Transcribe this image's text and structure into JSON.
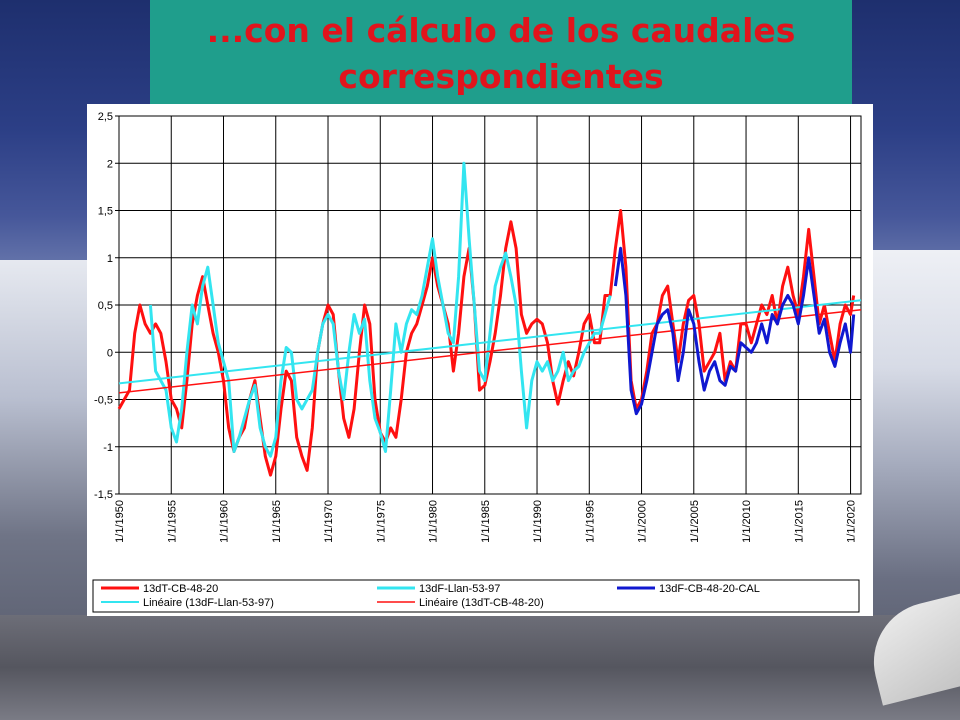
{
  "title": "...con el cálculo de los caudales correspondientes",
  "chart_data": {
    "type": "line",
    "xlim": [
      1950,
      2021
    ],
    "ylim": [
      -1.5,
      2.5
    ],
    "yticks": [
      "2,5",
      "2",
      "1,5",
      "1",
      "0,5",
      "0",
      "-0,5",
      "-1",
      "-1,5"
    ],
    "ytick_values": [
      2.5,
      2,
      1.5,
      1,
      0.5,
      0,
      -0.5,
      -1,
      -1.5
    ],
    "xticks": [
      "1/1/1950",
      "1/1/1955",
      "1/1/1960",
      "1/1/1965",
      "1/1/1970",
      "1/1/1975",
      "1/1/1980",
      "1/1/1985",
      "1/1/1990",
      "1/1/1995",
      "1/1/2000",
      "1/1/2005",
      "1/1/2010",
      "1/1/2015",
      "1/1/2020"
    ],
    "xtick_values": [
      1950,
      1955,
      1960,
      1965,
      1970,
      1975,
      1980,
      1985,
      1990,
      1995,
      2000,
      2005,
      2010,
      2015,
      2020
    ],
    "grid": true,
    "legend_position": "bottom",
    "series": [
      {
        "name": "13dT-CB-48-20",
        "color": "#ff1010",
        "width": 3,
        "points": [
          [
            1950,
            -0.6
          ],
          [
            1951,
            -0.4
          ],
          [
            1951.5,
            0.2
          ],
          [
            1952,
            0.5
          ],
          [
            1952.5,
            0.3
          ],
          [
            1953,
            0.2
          ],
          [
            1953.5,
            0.3
          ],
          [
            1954,
            0.2
          ],
          [
            1954.5,
            -0.1
          ],
          [
            1955,
            -0.5
          ],
          [
            1955.5,
            -0.6
          ],
          [
            1956,
            -0.8
          ],
          [
            1956.5,
            -0.3
          ],
          [
            1957,
            0.3
          ],
          [
            1957.5,
            0.6
          ],
          [
            1958,
            0.8
          ],
          [
            1958.5,
            0.5
          ],
          [
            1959,
            0.2
          ],
          [
            1959.5,
            0.0
          ],
          [
            1960,
            -0.3
          ],
          [
            1960.5,
            -0.8
          ],
          [
            1961,
            -1.05
          ],
          [
            1961.5,
            -0.9
          ],
          [
            1962,
            -0.8
          ],
          [
            1962.5,
            -0.5
          ],
          [
            1963,
            -0.3
          ],
          [
            1963.5,
            -0.7
          ],
          [
            1964,
            -1.1
          ],
          [
            1964.5,
            -1.3
          ],
          [
            1965,
            -1.1
          ],
          [
            1965.5,
            -0.6
          ],
          [
            1966,
            -0.2
          ],
          [
            1966.5,
            -0.3
          ],
          [
            1967,
            -0.9
          ],
          [
            1967.5,
            -1.1
          ],
          [
            1968,
            -1.25
          ],
          [
            1968.5,
            -0.8
          ],
          [
            1969,
            0.0
          ],
          [
            1969.5,
            0.3
          ],
          [
            1970,
            0.5
          ],
          [
            1970.5,
            0.4
          ],
          [
            1971,
            -0.2
          ],
          [
            1971.5,
            -0.7
          ],
          [
            1972,
            -0.9
          ],
          [
            1972.5,
            -0.6
          ],
          [
            1973,
            0.0
          ],
          [
            1973.5,
            0.5
          ],
          [
            1974,
            0.3
          ],
          [
            1974.5,
            -0.5
          ],
          [
            1975,
            -0.85
          ],
          [
            1975.5,
            -0.95
          ],
          [
            1976,
            -0.8
          ],
          [
            1976.5,
            -0.9
          ],
          [
            1977,
            -0.5
          ],
          [
            1977.5,
            0.0
          ],
          [
            1978,
            0.2
          ],
          [
            1978.5,
            0.3
          ],
          [
            1979,
            0.5
          ],
          [
            1979.5,
            0.7
          ],
          [
            1980,
            1.0
          ],
          [
            1980.5,
            0.7
          ],
          [
            1981,
            0.5
          ],
          [
            1981.5,
            0.3
          ],
          [
            1982,
            -0.2
          ],
          [
            1982.5,
            0.2
          ],
          [
            1983,
            0.8
          ],
          [
            1983.5,
            1.1
          ],
          [
            1984,
            0.5
          ],
          [
            1984.5,
            -0.4
          ],
          [
            1985,
            -0.35
          ],
          [
            1985.5,
            -0.1
          ],
          [
            1986,
            0.2
          ],
          [
            1986.5,
            0.6
          ],
          [
            1987,
            1.1
          ],
          [
            1987.5,
            1.38
          ],
          [
            1988,
            1.1
          ],
          [
            1988.5,
            0.4
          ],
          [
            1989,
            0.2
          ],
          [
            1989.5,
            0.3
          ],
          [
            1990,
            0.35
          ],
          [
            1990.5,
            0.3
          ],
          [
            1991,
            0.1
          ],
          [
            1991.5,
            -0.3
          ],
          [
            1992,
            -0.55
          ],
          [
            1992.5,
            -0.3
          ],
          [
            1993,
            -0.1
          ],
          [
            1993.5,
            -0.25
          ],
          [
            1994,
            0.0
          ],
          [
            1994.5,
            0.3
          ],
          [
            1995,
            0.4
          ],
          [
            1995.5,
            0.1
          ],
          [
            1996,
            0.1
          ],
          [
            1996.5,
            0.6
          ],
          [
            1997,
            0.6
          ],
          [
            1997.5,
            1.1
          ],
          [
            1998,
            1.5
          ],
          [
            1998.5,
            0.9
          ],
          [
            1999,
            -0.3
          ],
          [
            1999.5,
            -0.6
          ],
          [
            2000,
            -0.5
          ],
          [
            2000.5,
            -0.2
          ],
          [
            2001,
            0.2
          ],
          [
            2001.5,
            0.3
          ],
          [
            2002,
            0.6
          ],
          [
            2002.5,
            0.7
          ],
          [
            2003,
            0.3
          ],
          [
            2003.5,
            -0.1
          ],
          [
            2004,
            0.3
          ],
          [
            2004.5,
            0.55
          ],
          [
            2005,
            0.6
          ],
          [
            2005.5,
            0.3
          ],
          [
            2006,
            -0.2
          ],
          [
            2006.5,
            -0.1
          ],
          [
            2007,
            0.0
          ],
          [
            2007.5,
            0.2
          ],
          [
            2008,
            -0.3
          ],
          [
            2008.5,
            -0.1
          ],
          [
            2009,
            -0.2
          ],
          [
            2009.5,
            0.3
          ],
          [
            2010,
            0.3
          ],
          [
            2010.5,
            0.1
          ],
          [
            2011,
            0.3
          ],
          [
            2011.5,
            0.5
          ],
          [
            2012,
            0.4
          ],
          [
            2012.5,
            0.6
          ],
          [
            2013,
            0.3
          ],
          [
            2013.5,
            0.7
          ],
          [
            2014,
            0.9
          ],
          [
            2014.5,
            0.6
          ],
          [
            2015,
            0.4
          ],
          [
            2015.5,
            0.8
          ],
          [
            2016,
            1.3
          ],
          [
            2016.5,
            0.8
          ],
          [
            2017,
            0.3
          ],
          [
            2017.5,
            0.5
          ],
          [
            2018,
            0.2
          ],
          [
            2018.5,
            -0.1
          ],
          [
            2019,
            0.3
          ],
          [
            2019.5,
            0.5
          ],
          [
            2020,
            0.4
          ],
          [
            2020.3,
            0.6
          ]
        ]
      },
      {
        "name": "13dF-Llan-53-97",
        "color": "#33e5f0",
        "width": 3,
        "points": [
          [
            1953,
            0.5
          ],
          [
            1953.5,
            -0.2
          ],
          [
            1954,
            -0.3
          ],
          [
            1954.5,
            -0.4
          ],
          [
            1955,
            -0.8
          ],
          [
            1955.5,
            -0.95
          ],
          [
            1956,
            -0.6
          ],
          [
            1956.5,
            0.0
          ],
          [
            1957,
            0.5
          ],
          [
            1957.5,
            0.3
          ],
          [
            1958,
            0.7
          ],
          [
            1958.5,
            0.9
          ],
          [
            1959,
            0.5
          ],
          [
            1959.5,
            0.1
          ],
          [
            1960,
            -0.1
          ],
          [
            1960.5,
            -0.3
          ],
          [
            1961,
            -1.05
          ],
          [
            1961.5,
            -0.9
          ],
          [
            1962,
            -0.7
          ],
          [
            1962.5,
            -0.5
          ],
          [
            1963,
            -0.35
          ],
          [
            1963.5,
            -0.8
          ],
          [
            1964,
            -1.0
          ],
          [
            1964.5,
            -1.1
          ],
          [
            1965,
            -0.9
          ],
          [
            1965.5,
            -0.3
          ],
          [
            1966,
            0.05
          ],
          [
            1966.5,
            0.0
          ],
          [
            1967,
            -0.5
          ],
          [
            1967.5,
            -0.6
          ],
          [
            1968,
            -0.5
          ],
          [
            1968.5,
            -0.4
          ],
          [
            1969,
            0.0
          ],
          [
            1969.5,
            0.3
          ],
          [
            1970,
            0.4
          ],
          [
            1970.5,
            0.3
          ],
          [
            1971,
            -0.2
          ],
          [
            1971.5,
            -0.5
          ],
          [
            1972,
            0.0
          ],
          [
            1972.5,
            0.4
          ],
          [
            1973,
            0.2
          ],
          [
            1973.5,
            0.35
          ],
          [
            1974,
            -0.3
          ],
          [
            1974.5,
            -0.7
          ],
          [
            1975,
            -0.85
          ],
          [
            1975.5,
            -1.05
          ],
          [
            1976,
            -0.4
          ],
          [
            1976.5,
            0.3
          ],
          [
            1977,
            0.0
          ],
          [
            1977.5,
            0.3
          ],
          [
            1978,
            0.45
          ],
          [
            1978.5,
            0.4
          ],
          [
            1979,
            0.6
          ],
          [
            1979.5,
            0.9
          ],
          [
            1980,
            1.2
          ],
          [
            1980.5,
            0.8
          ],
          [
            1981,
            0.5
          ],
          [
            1981.5,
            0.2
          ],
          [
            1982,
            0.1
          ],
          [
            1982.5,
            0.8
          ],
          [
            1983,
            2.0
          ],
          [
            1983.5,
            1.2
          ],
          [
            1984,
            0.5
          ],
          [
            1984.5,
            -0.2
          ],
          [
            1985,
            -0.3
          ],
          [
            1985.5,
            0.2
          ],
          [
            1986,
            0.7
          ],
          [
            1986.5,
            0.9
          ],
          [
            1987,
            1.05
          ],
          [
            1987.5,
            0.8
          ],
          [
            1988,
            0.5
          ],
          [
            1988.5,
            -0.2
          ],
          [
            1989,
            -0.8
          ],
          [
            1989.5,
            -0.3
          ],
          [
            1990,
            -0.1
          ],
          [
            1990.5,
            -0.2
          ],
          [
            1991,
            -0.1
          ],
          [
            1991.5,
            -0.3
          ],
          [
            1992,
            -0.2
          ],
          [
            1992.5,
            0.0
          ],
          [
            1993,
            -0.3
          ],
          [
            1993.5,
            -0.2
          ],
          [
            1994,
            -0.15
          ],
          [
            1994.5,
            0.0
          ],
          [
            1995,
            0.1
          ],
          [
            1995.5,
            0.2
          ],
          [
            1996,
            0.2
          ],
          [
            1996.5,
            0.4
          ],
          [
            1997,
            0.6
          ]
        ]
      },
      {
        "name": "13dF-CB-48-20-CAL",
        "color": "#1018d0",
        "width": 3,
        "points": [
          [
            1997.5,
            0.7
          ],
          [
            1998,
            1.1
          ],
          [
            1998.5,
            0.6
          ],
          [
            1999,
            -0.4
          ],
          [
            1999.5,
            -0.65
          ],
          [
            2000,
            -0.55
          ],
          [
            2000.5,
            -0.3
          ],
          [
            2001,
            0.0
          ],
          [
            2001.5,
            0.3
          ],
          [
            2002,
            0.4
          ],
          [
            2002.5,
            0.45
          ],
          [
            2003,
            0.2
          ],
          [
            2003.5,
            -0.3
          ],
          [
            2004,
            0.0
          ],
          [
            2004.5,
            0.45
          ],
          [
            2005,
            0.3
          ],
          [
            2005.5,
            -0.1
          ],
          [
            2006,
            -0.4
          ],
          [
            2006.5,
            -0.2
          ],
          [
            2007,
            -0.1
          ],
          [
            2007.5,
            -0.3
          ],
          [
            2008,
            -0.35
          ],
          [
            2008.5,
            -0.15
          ],
          [
            2009,
            -0.2
          ],
          [
            2009.5,
            0.1
          ],
          [
            2010,
            0.05
          ],
          [
            2010.5,
            0.0
          ],
          [
            2011,
            0.1
          ],
          [
            2011.5,
            0.3
          ],
          [
            2012,
            0.1
          ],
          [
            2012.5,
            0.4
          ],
          [
            2013,
            0.3
          ],
          [
            2013.5,
            0.5
          ],
          [
            2014,
            0.6
          ],
          [
            2014.5,
            0.5
          ],
          [
            2015,
            0.3
          ],
          [
            2015.5,
            0.6
          ],
          [
            2016,
            1.0
          ],
          [
            2016.5,
            0.6
          ],
          [
            2017,
            0.2
          ],
          [
            2017.5,
            0.35
          ],
          [
            2018,
            0.0
          ],
          [
            2018.5,
            -0.15
          ],
          [
            2019,
            0.1
          ],
          [
            2019.5,
            0.3
          ],
          [
            2020,
            0.0
          ],
          [
            2020.3,
            0.4
          ]
        ]
      },
      {
        "name": "Linéaire (13dF-Llan-53-97)",
        "color": "#33e5f0",
        "width": 2,
        "points": [
          [
            1950,
            -0.33
          ],
          [
            2021,
            0.55
          ]
        ]
      },
      {
        "name": "Linéaire (13dT-CB-48-20)",
        "color": "#ff1010",
        "width": 1.5,
        "points": [
          [
            1950,
            -0.43
          ],
          [
            2021,
            0.45
          ]
        ]
      }
    ],
    "legend": [
      {
        "label": "13dT-CB-48-20",
        "color": "#ff1010",
        "width": 3
      },
      {
        "label": "13dF-Llan-53-97",
        "color": "#33e5f0",
        "width": 3
      },
      {
        "label": "13dF-CB-48-20-CAL",
        "color": "#1018d0",
        "width": 3
      },
      {
        "label": "Linéaire (13dF-Llan-53-97)",
        "color": "#33e5f0",
        "width": 2
      },
      {
        "label": "Linéaire (13dT-CB-48-20)",
        "color": "#ff1010",
        "width": 1.5
      }
    ]
  }
}
